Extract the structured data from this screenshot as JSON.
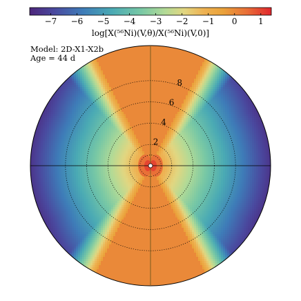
{
  "chart_data": {
    "type": "heatmap",
    "colorbar": {
      "min": -7.8,
      "max": 1.4,
      "ticks": [
        -7,
        -6,
        -5,
        -4,
        -3,
        -2,
        -1,
        0,
        1
      ],
      "tick_labels": [
        "−7",
        "−6",
        "−5",
        "−4",
        "−3",
        "−2",
        "−1",
        "0",
        "1"
      ],
      "label": "log[X(⁵⁶Ni)(V,θ)/X(⁵⁶Ni)(V,0)]",
      "colormap": "spectral"
    },
    "model_label": "Model: 2D-X1-X2b",
    "age_label": "Age = 44 d",
    "velocity_rings": {
      "values": [
        2,
        4,
        6,
        8
      ],
      "labels": [
        "2",
        "4",
        "6",
        "8"
      ],
      "vmax": 11.3
    },
    "cone": {
      "half_angle_deg": 27,
      "value_inside": 0.0,
      "peak_center_value": 1.0
    },
    "outer_value": -7.4,
    "grid": true
  }
}
